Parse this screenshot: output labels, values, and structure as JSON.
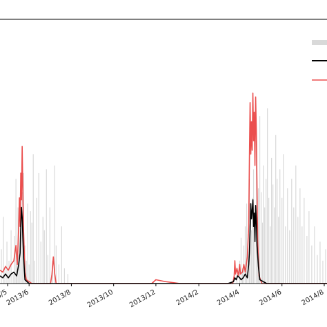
{
  "chart_data": {
    "type": "line",
    "title": "",
    "xlabel": "",
    "ylabel": "",
    "x_axis": {
      "kind": "date",
      "range": [
        "2013-04-20",
        "2014-08-05"
      ],
      "ticks": [
        {
          "date": "2013-05-01",
          "label": "2013/5"
        },
        {
          "date": "2013-06-01",
          "label": "2013/6"
        },
        {
          "date": "2013-08-01",
          "label": "2013/8"
        },
        {
          "date": "2013-10-01",
          "label": "2013/10"
        },
        {
          "date": "2013-12-01",
          "label": "2013/12"
        },
        {
          "date": "2014-02-01",
          "label": "2014/2"
        },
        {
          "date": "2014-04-01",
          "label": "2014/4"
        },
        {
          "date": "2014-06-01",
          "label": "2014/6"
        },
        {
          "date": "2014-08-01",
          "label": "2014/8"
        }
      ]
    },
    "y_axis": {
      "range": [
        0,
        1
      ],
      "tick_labels_visible": false
    },
    "grid": false,
    "legend": {
      "placement": "top-right",
      "entries": [
        "",
        "",
        ""
      ]
    },
    "series": [
      {
        "style": "gray-bars",
        "color": "#d9d9d9",
        "points": [
          [
            "2013-04-22",
            0.18
          ],
          [
            "2013-04-25",
            0.35
          ],
          [
            "2013-04-27",
            0.08
          ],
          [
            "2013-04-30",
            0.22
          ],
          [
            "2013-05-03",
            0.12
          ],
          [
            "2013-05-06",
            0.28
          ],
          [
            "2013-05-09",
            0.05
          ],
          [
            "2013-05-11",
            0.25
          ],
          [
            "2013-05-13",
            0.55
          ],
          [
            "2013-05-14",
            0.1
          ],
          [
            "2013-05-16",
            0.4
          ],
          [
            "2013-05-18",
            0.15
          ],
          [
            "2013-05-20",
            0.3
          ],
          [
            "2013-05-22",
            0.48
          ],
          [
            "2013-05-24",
            0.58
          ],
          [
            "2013-05-26",
            0.2
          ],
          [
            "2013-05-28",
            0.12
          ],
          [
            "2013-05-30",
            0.42
          ],
          [
            "2013-06-01",
            0.1
          ],
          [
            "2013-06-03",
            0.38
          ],
          [
            "2013-06-05",
            0.32
          ],
          [
            "2013-06-07",
            0.68
          ],
          [
            "2013-06-09",
            0.12
          ],
          [
            "2013-06-12",
            0.45
          ],
          [
            "2013-06-15",
            0.58
          ],
          [
            "2013-06-18",
            0.22
          ],
          [
            "2013-06-21",
            0.35
          ],
          [
            "2013-06-23",
            0.28
          ],
          [
            "2013-06-26",
            0.6
          ],
          [
            "2013-06-28",
            0.15
          ],
          [
            "2013-07-01",
            0.4
          ],
          [
            "2013-07-05",
            0.12
          ],
          [
            "2013-07-08",
            0.62
          ],
          [
            "2013-07-10",
            0.2
          ],
          [
            "2013-07-14",
            0.1
          ],
          [
            "2013-07-18",
            0.3
          ],
          [
            "2013-07-22",
            0.08
          ],
          [
            "2013-07-27",
            0.05
          ],
          [
            "2014-03-28",
            0.05
          ],
          [
            "2014-04-01",
            0.12
          ],
          [
            "2014-04-03",
            0.24
          ],
          [
            "2014-04-05",
            0.08
          ],
          [
            "2014-04-07",
            0.2
          ],
          [
            "2014-04-09",
            0.3
          ],
          [
            "2014-04-11",
            0.42
          ],
          [
            "2014-04-13",
            0.26
          ],
          [
            "2014-04-15",
            0.55
          ],
          [
            "2014-04-16",
            0.38
          ],
          [
            "2014-04-18",
            0.28
          ],
          [
            "2014-04-20",
            0.45
          ],
          [
            "2014-04-21",
            0.6
          ],
          [
            "2014-04-23",
            0.22
          ],
          [
            "2014-04-25",
            0.75
          ],
          [
            "2014-04-27",
            0.35
          ],
          [
            "2014-04-28",
            0.5
          ],
          [
            "2014-04-30",
            0.88
          ],
          [
            "2014-05-02",
            0.48
          ],
          [
            "2014-05-04",
            0.32
          ],
          [
            "2014-05-05",
            0.62
          ],
          [
            "2014-05-07",
            0.4
          ],
          [
            "2014-05-09",
            0.55
          ],
          [
            "2014-05-11",
            0.92
          ],
          [
            "2014-05-13",
            0.45
          ],
          [
            "2014-05-15",
            0.3
          ],
          [
            "2014-05-17",
            0.66
          ],
          [
            "2014-05-19",
            0.52
          ],
          [
            "2014-05-21",
            0.4
          ],
          [
            "2014-05-23",
            0.78
          ],
          [
            "2014-05-25",
            0.55
          ],
          [
            "2014-05-27",
            0.35
          ],
          [
            "2014-05-29",
            0.6
          ],
          [
            "2014-06-01",
            0.45
          ],
          [
            "2014-06-03",
            0.68
          ],
          [
            "2014-06-06",
            0.3
          ],
          [
            "2014-06-09",
            0.5
          ],
          [
            "2014-06-12",
            0.28
          ],
          [
            "2014-06-15",
            0.55
          ],
          [
            "2014-06-18",
            0.4
          ],
          [
            "2014-06-21",
            0.62
          ],
          [
            "2014-06-24",
            0.35
          ],
          [
            "2014-06-27",
            0.5
          ],
          [
            "2014-06-30",
            0.3
          ],
          [
            "2014-07-03",
            0.45
          ],
          [
            "2014-07-07",
            0.25
          ],
          [
            "2014-07-10",
            0.38
          ],
          [
            "2014-07-14",
            0.2
          ],
          [
            "2014-07-18",
            0.3
          ],
          [
            "2014-07-22",
            0.15
          ],
          [
            "2014-07-26",
            0.22
          ],
          [
            "2014-07-30",
            0.12
          ],
          [
            "2014-08-03",
            0.18
          ]
        ]
      },
      {
        "style": "line",
        "color": "#000000",
        "points": [
          [
            "2013-04-20",
            0.04
          ],
          [
            "2013-04-24",
            0.03
          ],
          [
            "2013-04-28",
            0.05
          ],
          [
            "2013-05-02",
            0.03
          ],
          [
            "2013-05-06",
            0.05
          ],
          [
            "2013-05-10",
            0.06
          ],
          [
            "2013-05-14",
            0.04
          ],
          [
            "2013-05-17",
            0.1
          ],
          [
            "2013-05-19",
            0.16
          ],
          [
            "2013-05-20",
            0.3
          ],
          [
            "2013-05-21",
            0.4
          ],
          [
            "2013-05-22",
            0.35
          ],
          [
            "2013-05-24",
            0.14
          ],
          [
            "2013-05-26",
            0.02
          ],
          [
            "2013-06-01",
            0.0
          ],
          [
            "2014-01-30",
            0.0
          ],
          [
            "2014-03-15",
            0.0
          ],
          [
            "2014-03-23",
            0.01
          ],
          [
            "2014-03-25",
            0.03
          ],
          [
            "2014-03-27",
            0.02
          ],
          [
            "2014-03-29",
            0.04
          ],
          [
            "2014-04-01",
            0.03
          ],
          [
            "2014-04-03",
            0.02
          ],
          [
            "2014-04-06",
            0.03
          ],
          [
            "2014-04-09",
            0.05
          ],
          [
            "2014-04-12",
            0.03
          ],
          [
            "2014-04-14",
            0.1
          ],
          [
            "2014-04-15",
            0.16
          ],
          [
            "2014-04-16",
            0.28
          ],
          [
            "2014-04-17",
            0.42
          ],
          [
            "2014-04-18",
            0.34
          ],
          [
            "2014-04-19",
            0.38
          ],
          [
            "2014-04-20",
            0.44
          ],
          [
            "2014-04-21",
            0.3
          ],
          [
            "2014-04-22",
            0.37
          ],
          [
            "2014-04-23",
            0.22
          ],
          [
            "2014-04-24",
            0.41
          ],
          [
            "2014-04-25",
            0.33
          ],
          [
            "2014-04-26",
            0.2
          ],
          [
            "2014-04-28",
            0.09
          ],
          [
            "2014-04-30",
            0.02
          ],
          [
            "2014-05-10",
            0.0
          ],
          [
            "2014-08-05",
            0.0
          ]
        ]
      },
      {
        "style": "line",
        "color": "#e8302f",
        "points": [
          [
            "2013-04-20",
            0.07
          ],
          [
            "2013-04-24",
            0.06
          ],
          [
            "2013-04-28",
            0.09
          ],
          [
            "2013-05-02",
            0.07
          ],
          [
            "2013-05-06",
            0.1
          ],
          [
            "2013-05-10",
            0.12
          ],
          [
            "2013-05-13",
            0.2
          ],
          [
            "2013-05-15",
            0.1
          ],
          [
            "2013-05-17",
            0.3
          ],
          [
            "2013-05-18",
            0.45
          ],
          [
            "2013-05-19",
            0.3
          ],
          [
            "2013-05-20",
            0.58
          ],
          [
            "2013-05-21",
            0.44
          ],
          [
            "2013-05-22",
            0.72
          ],
          [
            "2013-05-23",
            0.48
          ],
          [
            "2013-05-24",
            0.28
          ],
          [
            "2013-05-26",
            0.06
          ],
          [
            "2013-05-28",
            0.02
          ],
          [
            "2013-06-05",
            0.0
          ],
          [
            "2013-07-02",
            0.0
          ],
          [
            "2013-07-04",
            0.05
          ],
          [
            "2013-07-06",
            0.14
          ],
          [
            "2013-07-08",
            0.05
          ],
          [
            "2013-07-10",
            0.0
          ],
          [
            "2013-11-25",
            0.0
          ],
          [
            "2013-12-01",
            0.02
          ],
          [
            "2013-12-15",
            0.01
          ],
          [
            "2014-01-05",
            0.0
          ],
          [
            "2014-03-22",
            0.0
          ],
          [
            "2014-03-24",
            0.04
          ],
          [
            "2014-03-25",
            0.12
          ],
          [
            "2014-03-26",
            0.05
          ],
          [
            "2014-03-28",
            0.08
          ],
          [
            "2014-03-30",
            0.04
          ],
          [
            "2014-04-01",
            0.1
          ],
          [
            "2014-04-02",
            0.05
          ],
          [
            "2014-04-05",
            0.06
          ],
          [
            "2014-04-07",
            0.1
          ],
          [
            "2014-04-09",
            0.06
          ],
          [
            "2014-04-12",
            0.14
          ],
          [
            "2014-04-14",
            0.3
          ],
          [
            "2014-04-15",
            0.65
          ],
          [
            "2014-04-16",
            0.95
          ],
          [
            "2014-04-17",
            0.68
          ],
          [
            "2014-04-18",
            0.85
          ],
          [
            "2014-04-19",
            0.7
          ],
          [
            "2014-04-20",
            1.0
          ],
          [
            "2014-04-21",
            0.75
          ],
          [
            "2014-04-22",
            0.9
          ],
          [
            "2014-04-23",
            0.62
          ],
          [
            "2014-04-24",
            0.98
          ],
          [
            "2014-04-25",
            0.8
          ],
          [
            "2014-04-26",
            0.5
          ],
          [
            "2014-04-27",
            0.22
          ],
          [
            "2014-04-29",
            0.04
          ],
          [
            "2014-05-03",
            0.0
          ],
          [
            "2014-08-05",
            0.0
          ]
        ]
      }
    ]
  }
}
